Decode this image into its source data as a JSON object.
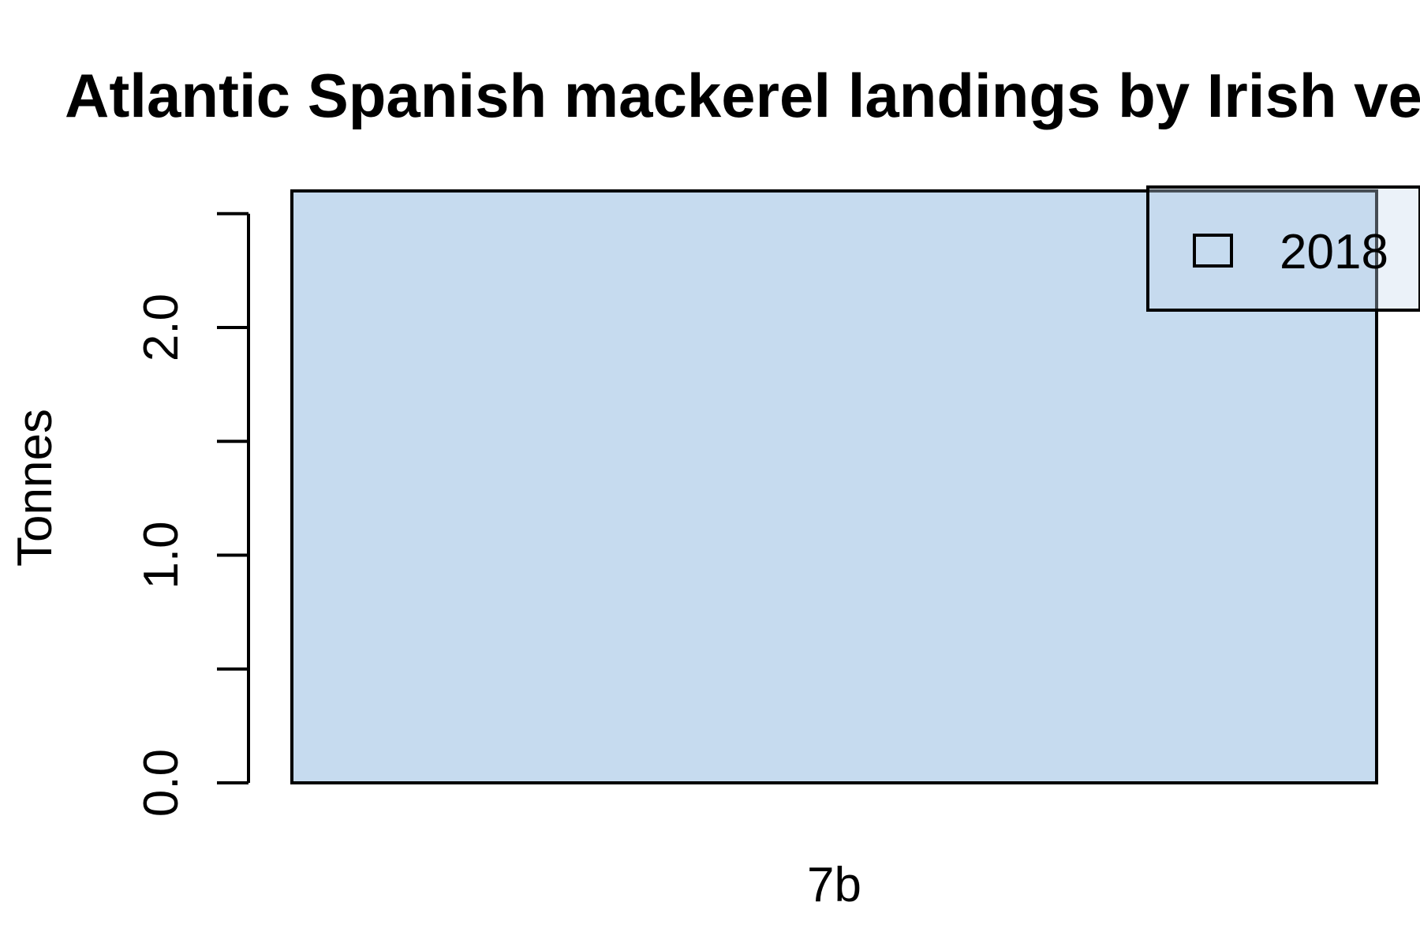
{
  "chart_data": {
    "type": "bar",
    "title": "Atlantic Spanish mackerel landings by Irish vessels",
    "xlabel": "",
    "ylabel": "Tonnes",
    "categories": [
      "7b"
    ],
    "series": [
      {
        "name": "2018",
        "values": [
          2.6
        ]
      }
    ],
    "ylim": [
      0,
      2.6
    ],
    "yticks": [
      0,
      0.5,
      1,
      1.5,
      2,
      2.5
    ],
    "ytick_labels": [
      "0.0",
      "",
      "1.0",
      "",
      "2.0",
      ""
    ],
    "bar_color": "#c6dbef",
    "legend_position": "top-right",
    "grid": false
  }
}
